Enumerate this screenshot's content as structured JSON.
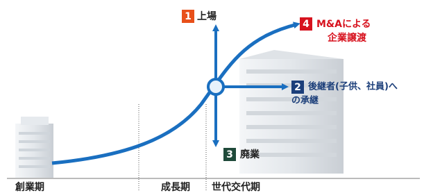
{
  "stages": [
    "創業期",
    "成長期",
    "世代交代期"
  ],
  "options": [
    {
      "number": "1",
      "lines": [
        "上場"
      ]
    },
    {
      "number": "2",
      "lines": [
        "後継者(子供、社員)へ",
        "の承継"
      ]
    },
    {
      "number": "3",
      "lines": [
        "廃業"
      ]
    },
    {
      "number": "4",
      "lines": [
        "M&Aによる",
        "企業譲渡"
      ]
    }
  ]
}
